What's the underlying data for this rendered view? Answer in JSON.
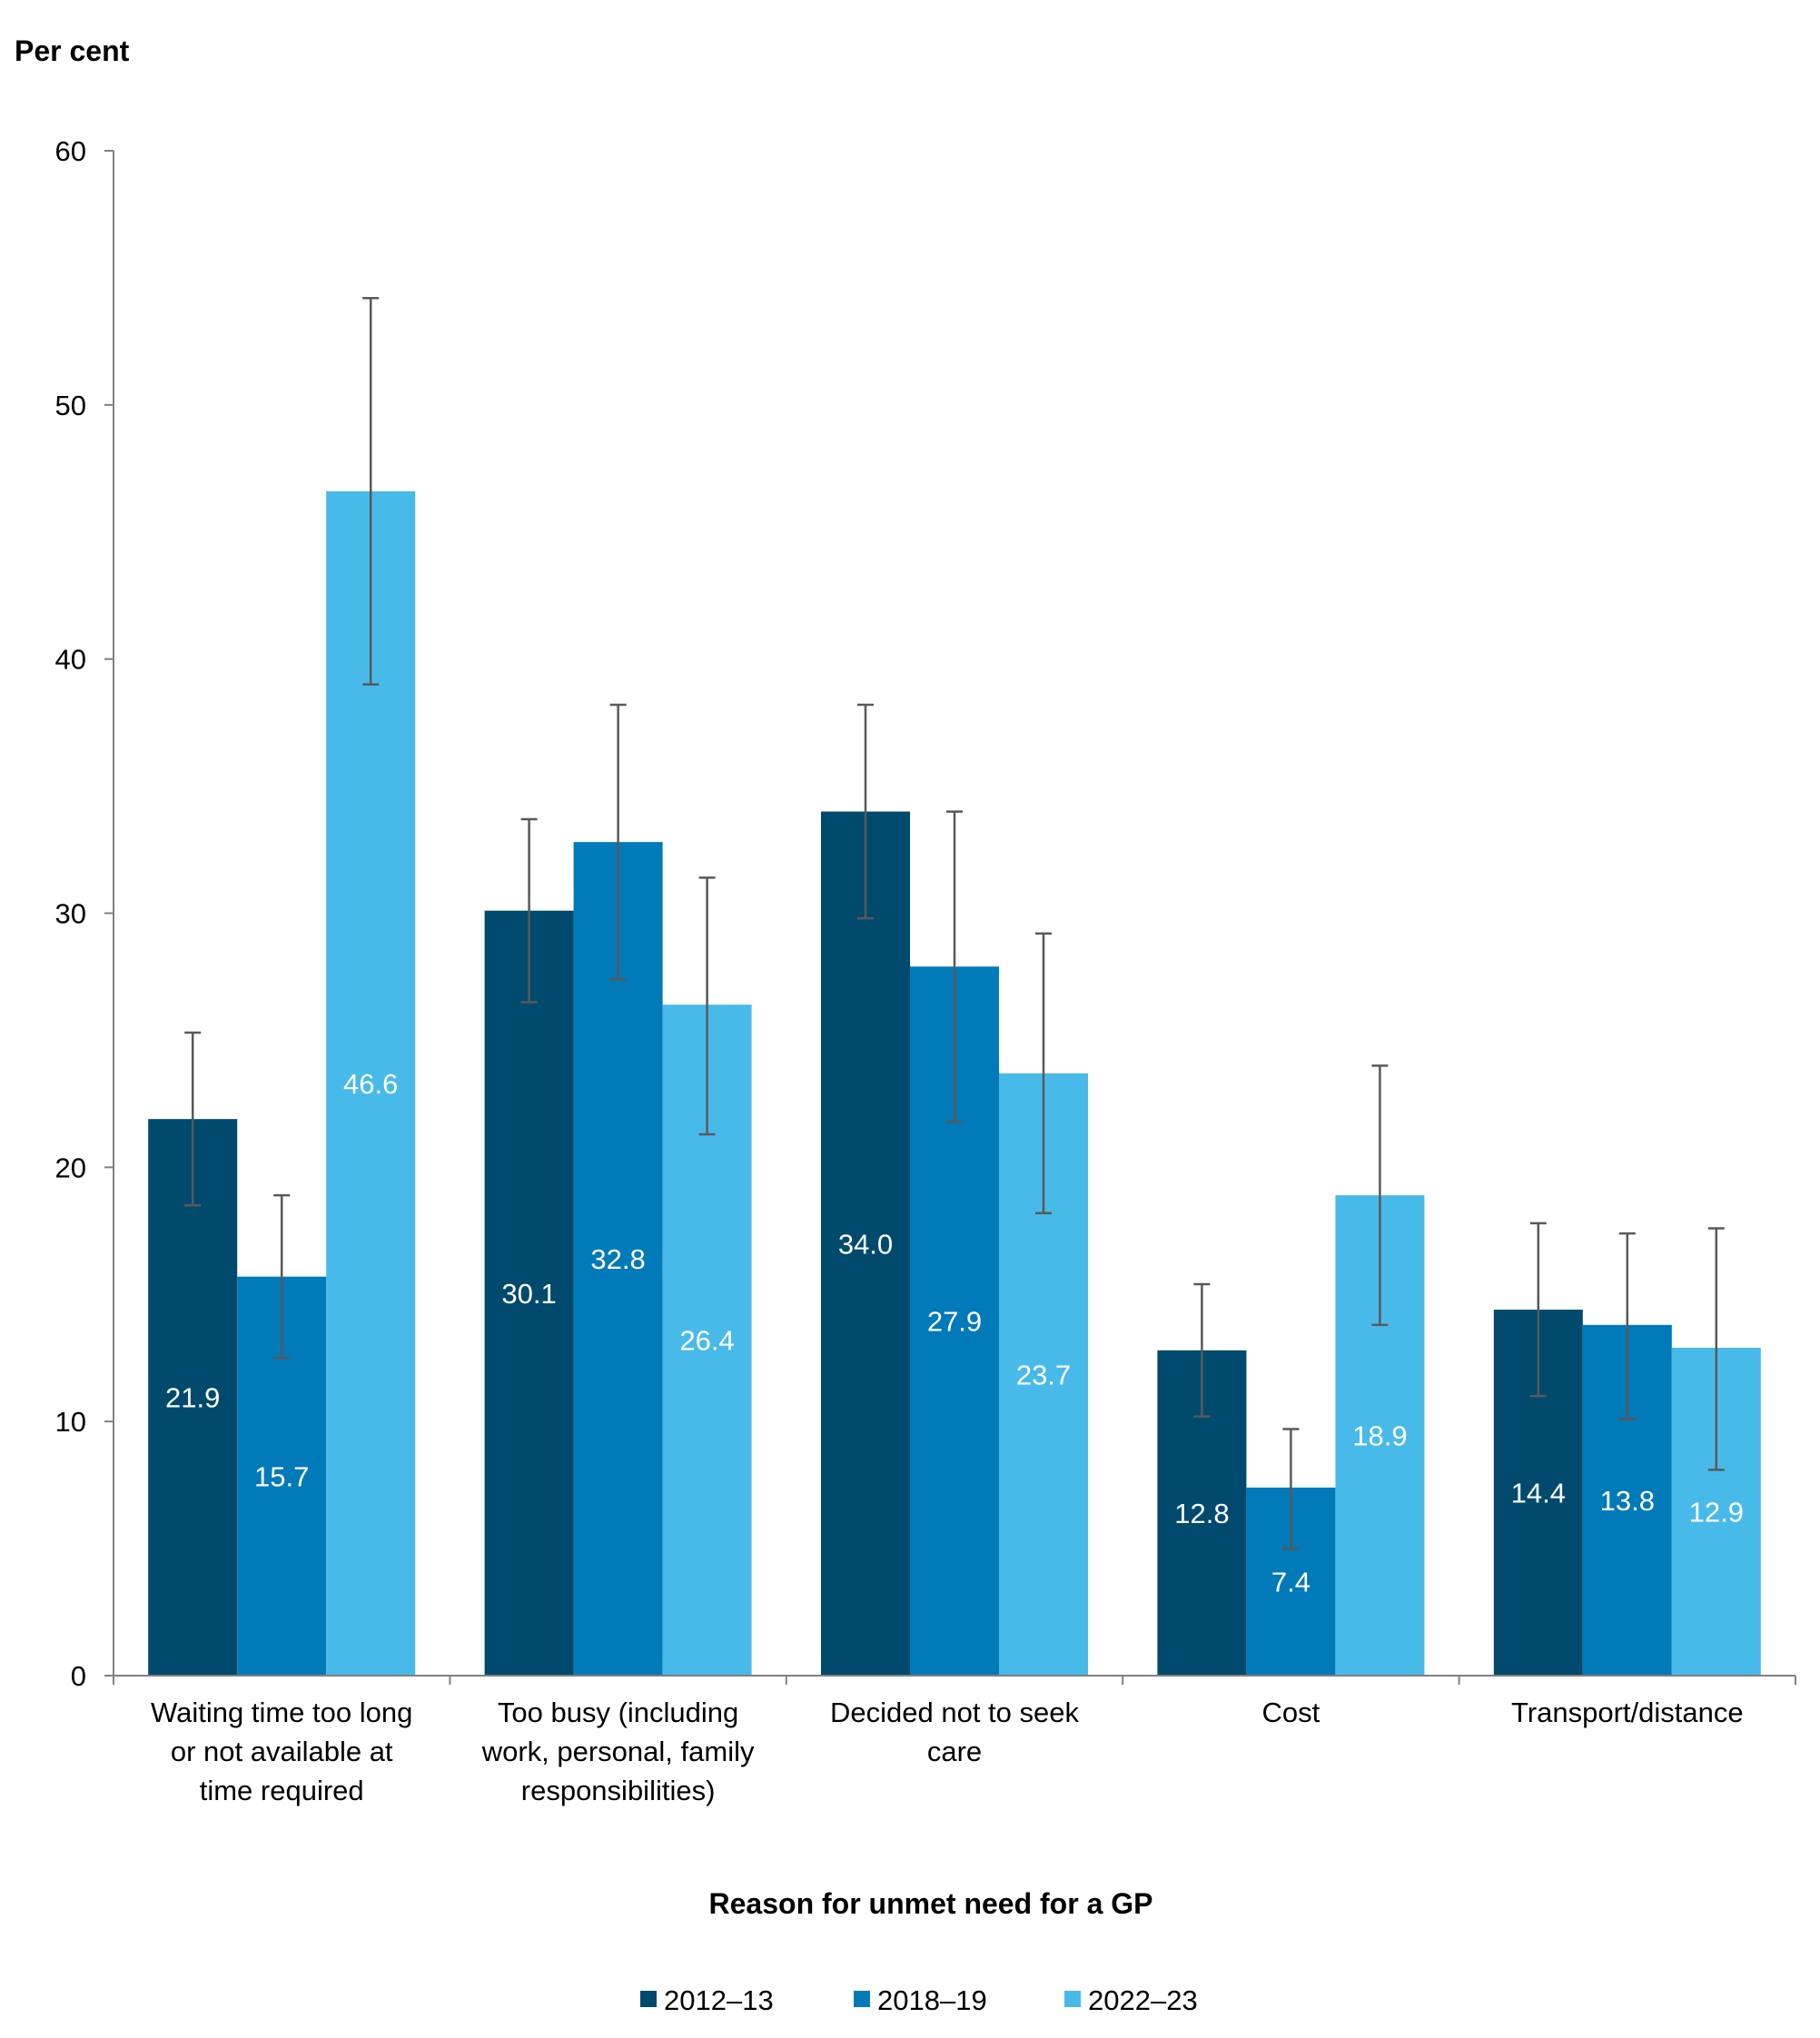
{
  "chart_data": {
    "type": "bar",
    "ylabel": "Per cent",
    "xlabel": "Reason for unmet need for a GP",
    "ylim": [
      0,
      60
    ],
    "yticks": [
      0,
      10,
      20,
      30,
      40,
      50,
      60
    ],
    "categories": [
      [
        "Waiting time too long",
        "or not available at",
        "time required"
      ],
      [
        "Too busy (including",
        "work, personal, family",
        "responsibilities)"
      ],
      [
        "Decided not to seek",
        "care"
      ],
      [
        "Cost"
      ],
      [
        "Transport/distance"
      ]
    ],
    "series": [
      {
        "name": "2012–13",
        "color": "#004a6e",
        "values": [
          21.9,
          30.1,
          34.0,
          12.8,
          14.4
        ],
        "labels": [
          "21.9",
          "30.1",
          "34.0",
          "12.8",
          "14.4"
        ],
        "ci_low": [
          18.5,
          26.5,
          29.8,
          10.2,
          11.0
        ],
        "ci_high": [
          25.3,
          33.7,
          38.2,
          15.4,
          17.8
        ]
      },
      {
        "name": "2018–19",
        "color": "#007ab8",
        "values": [
          15.7,
          32.8,
          27.9,
          7.4,
          13.8
        ],
        "labels": [
          "15.7",
          "32.8",
          "27.9",
          "7.4",
          "13.8"
        ],
        "ci_low": [
          12.5,
          27.4,
          21.8,
          5.0,
          10.1
        ],
        "ci_high": [
          18.9,
          38.2,
          34.0,
          9.7,
          17.4
        ]
      },
      {
        "name": "2022–23",
        "color": "#48baea",
        "values": [
          46.6,
          26.4,
          23.7,
          18.9,
          12.9
        ],
        "labels": [
          "46.6",
          "26.4",
          "23.7",
          "18.9",
          "12.9"
        ],
        "ci_low": [
          39.0,
          21.3,
          18.2,
          13.8,
          8.1
        ],
        "ci_high": [
          54.2,
          31.4,
          29.2,
          24.0,
          17.6
        ]
      }
    ],
    "legend_position": "bottom",
    "grid": false,
    "error_bars": true
  }
}
